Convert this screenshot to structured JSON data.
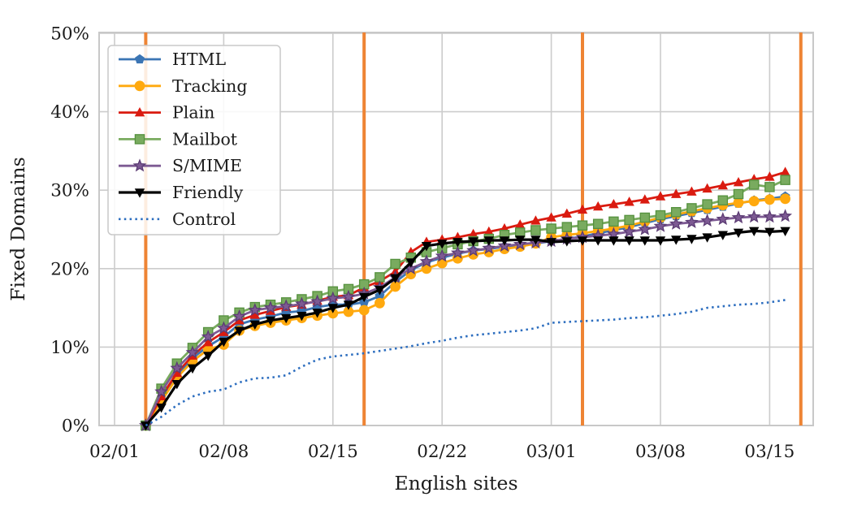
{
  "chart_data": {
    "type": "line",
    "title": "",
    "xlabel": "English sites",
    "ylabel": "Fixed Domains",
    "grid": true,
    "legend_position": "upper left",
    "ylim": [
      0,
      50
    ],
    "y_ticks": [
      0,
      10,
      20,
      30,
      40,
      50
    ],
    "y_tick_labels": [
      "0%",
      "10%",
      "20%",
      "30%",
      "40%",
      "50%"
    ],
    "x_tick_labels": [
      "02/01",
      "02/08",
      "02/15",
      "02/22",
      "03/01",
      "03/08",
      "03/15"
    ],
    "x": [
      "02/03",
      "02/04",
      "02/05",
      "02/06",
      "02/07",
      "02/08",
      "02/09",
      "02/10",
      "02/11",
      "02/12",
      "02/13",
      "02/14",
      "02/15",
      "02/16",
      "02/17",
      "02/18",
      "02/19",
      "02/20",
      "02/21",
      "02/22",
      "02/23",
      "02/24",
      "02/25",
      "02/26",
      "02/27",
      "02/28",
      "03/01",
      "03/02",
      "03/03",
      "03/04",
      "03/05",
      "03/06",
      "03/07",
      "03/08",
      "03/09",
      "03/10",
      "03/11",
      "03/12",
      "03/13",
      "03/14",
      "03/15",
      "03/16"
    ],
    "vlines": {
      "color": "#ee8434",
      "x_dates": [
        "02/03",
        "02/17",
        "03/03",
        "03/17"
      ]
    },
    "series": [
      {
        "name": "HTML",
        "color": "#3b75b4",
        "marker": "pentagon",
        "line": "solid",
        "width": 2.8,
        "values": [
          0,
          3.3,
          6.4,
          8.6,
          10.1,
          11.3,
          12.9,
          13.5,
          13.9,
          14.4,
          14.6,
          15.1,
          15.4,
          15.4,
          15.7,
          16.5,
          18.3,
          19.8,
          20.8,
          21.4,
          21.9,
          22.3,
          22.5,
          22.8,
          23.0,
          23.2,
          23.5,
          23.8,
          24.1,
          24.5,
          24.9,
          25.3,
          25.8,
          26.3,
          26.7,
          27.1,
          27.5,
          27.9,
          28.3,
          28.7,
          28.9,
          29.2
        ]
      },
      {
        "name": "Tracking",
        "color": "#ffa90e",
        "marker": "circle",
        "line": "solid",
        "width": 2.8,
        "values": [
          0,
          3.1,
          6.1,
          8.2,
          9.7,
          10.3,
          12.1,
          12.7,
          13.1,
          13.4,
          13.7,
          14.0,
          14.3,
          14.5,
          14.7,
          15.6,
          17.7,
          19.3,
          20.0,
          20.7,
          21.3,
          21.8,
          22.1,
          22.5,
          22.8,
          23.2,
          24.0,
          24.3,
          24.5,
          24.8,
          25.1,
          25.5,
          26.0,
          26.5,
          26.9,
          27.3,
          27.7,
          28.1,
          28.4,
          28.6,
          28.8,
          28.9
        ]
      },
      {
        "name": "Plain",
        "color": "#da1b10",
        "marker": "triangle-up",
        "line": "solid",
        "width": 2.8,
        "values": [
          0,
          3.7,
          6.7,
          8.9,
          10.6,
          11.9,
          13.4,
          14.1,
          14.6,
          15.1,
          15.4,
          15.9,
          16.4,
          16.6,
          17.6,
          18.4,
          19.6,
          22.1,
          23.4,
          23.7,
          24.0,
          24.4,
          24.7,
          25.1,
          25.6,
          26.1,
          26.5,
          27.0,
          27.5,
          27.9,
          28.2,
          28.5,
          28.8,
          29.2,
          29.5,
          29.8,
          30.2,
          30.6,
          31.0,
          31.4,
          31.7,
          32.3
        ]
      },
      {
        "name": "Mailbot",
        "color": "#79ab5f",
        "edge": "#55913e",
        "marker": "square",
        "line": "solid",
        "width": 2.8,
        "values": [
          0,
          4.7,
          7.9,
          9.9,
          11.9,
          13.4,
          14.4,
          15.1,
          15.4,
          15.7,
          16.1,
          16.5,
          17.1,
          17.4,
          18.0,
          18.9,
          20.6,
          21.4,
          22.1,
          22.6,
          23.1,
          23.5,
          23.8,
          24.3,
          24.6,
          24.9,
          25.1,
          25.3,
          25.5,
          25.7,
          26.0,
          26.2,
          26.5,
          26.8,
          27.2,
          27.7,
          28.2,
          28.7,
          29.5,
          30.7,
          30.4,
          31.3
        ]
      },
      {
        "name": "S/MIME",
        "color": "#7d5a93",
        "edge": "#5c3c74",
        "marker": "star",
        "line": "solid",
        "width": 2.8,
        "values": [
          0,
          4.3,
          7.3,
          9.3,
          11.3,
          12.4,
          13.9,
          14.7,
          15.0,
          15.2,
          15.5,
          15.8,
          16.2,
          16.4,
          16.8,
          17.6,
          18.9,
          20.0,
          20.9,
          21.6,
          22.0,
          22.3,
          22.6,
          22.9,
          23.1,
          23.3,
          23.5,
          23.8,
          24.0,
          24.2,
          24.4,
          24.7,
          25.0,
          25.4,
          25.7,
          25.9,
          26.1,
          26.3,
          26.5,
          26.6,
          26.6,
          26.7
        ]
      },
      {
        "name": "Friendly",
        "color": "#000000",
        "marker": "triangle-down",
        "line": "solid",
        "width": 3.2,
        "values": [
          0,
          2.3,
          5.3,
          7.3,
          8.9,
          10.7,
          12.1,
          12.9,
          13.4,
          13.7,
          14.0,
          14.4,
          15.0,
          15.4,
          16.4,
          17.3,
          18.8,
          20.8,
          22.9,
          23.2,
          23.4,
          23.5,
          23.6,
          23.6,
          23.7,
          23.7,
          23.4,
          23.5,
          23.6,
          23.6,
          23.6,
          23.6,
          23.6,
          23.6,
          23.7,
          23.8,
          24.0,
          24.3,
          24.6,
          24.8,
          24.7,
          24.8
        ]
      },
      {
        "name": "Control",
        "color": "#2d6ebf",
        "marker": "none",
        "line": "dotted",
        "width": 2.6,
        "values": [
          0,
          1.1,
          2.6,
          3.7,
          4.3,
          4.6,
          5.5,
          6.0,
          6.1,
          6.4,
          7.5,
          8.4,
          8.8,
          9.0,
          9.2,
          9.5,
          9.8,
          10.1,
          10.5,
          10.8,
          11.2,
          11.5,
          11.7,
          11.9,
          12.1,
          12.4,
          13.1,
          13.2,
          13.3,
          13.4,
          13.5,
          13.7,
          13.8,
          14.0,
          14.2,
          14.5,
          15.0,
          15.2,
          15.4,
          15.5,
          15.7,
          16.0
        ]
      }
    ],
    "style": {
      "grid_color": "#cccccc",
      "border_color": "#c8c8c8",
      "text_color": "#1c1c1c",
      "legend_bg": "rgba(255,255,255,0.85)",
      "legend_border": "#c9c9c9"
    }
  }
}
